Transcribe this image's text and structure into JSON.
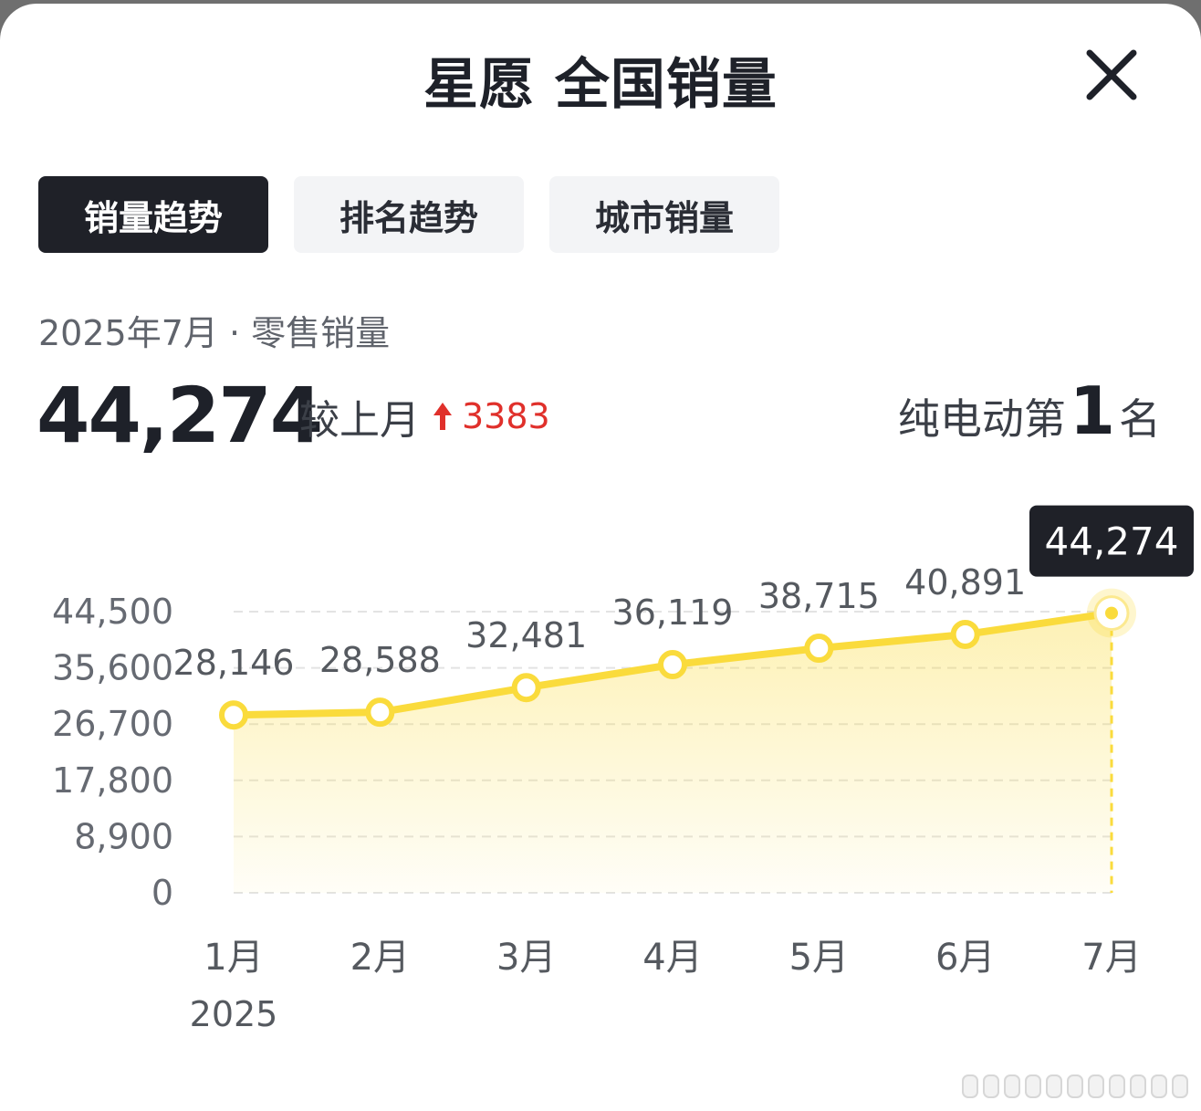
{
  "header": {
    "title": "星愿 全国销量",
    "close_icon": "close-icon"
  },
  "tabs": [
    {
      "label": "销量趋势",
      "active": true
    },
    {
      "label": "排名趋势",
      "active": false
    },
    {
      "label": "城市销量",
      "active": false
    }
  ],
  "summary": {
    "period_label": "2025年7月 · 零售销量",
    "sales_value": "44,274",
    "compare_label": "较上月",
    "compare_icon": "arrow-up-icon",
    "compare_delta": "3383",
    "rank_prefix": "纯电动第",
    "rank_number": "1",
    "rank_suffix": "名"
  },
  "colors": {
    "accent": "#fadb3c",
    "delta_up": "#e0302b",
    "active_tab": "#1f2128",
    "tooltip_bg": "#1f2128"
  },
  "chart_data": {
    "type": "line",
    "categories": [
      "1月",
      "2月",
      "3月",
      "4月",
      "5月",
      "6月",
      "7月"
    ],
    "x_sub_label": "2025",
    "values": [
      28146,
      28588,
      32481,
      36119,
      38715,
      40891,
      44274
    ],
    "data_labels": [
      "28,146",
      "28,588",
      "32,481",
      "36,119",
      "38,715",
      "40,891",
      "44,274"
    ],
    "y_ticks": [
      0,
      8900,
      17800,
      26700,
      35600,
      44500
    ],
    "y_tick_labels": [
      "0",
      "8,900",
      "17,800",
      "26,700",
      "35,600",
      "44,500"
    ],
    "ylim": [
      0,
      44500
    ],
    "grid": true,
    "area_fill": true,
    "highlight_index": 6,
    "tooltip_text": "44,274"
  }
}
